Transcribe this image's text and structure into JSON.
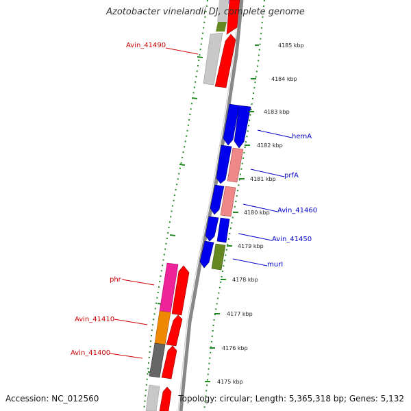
{
  "title": "Azotobacter vinelandii DJ, complete genome",
  "footer": {
    "accession": "Accession: NC_012560",
    "summary": "Topology: circular; Length: 5,365,318 bp; Genes: 5,132"
  },
  "ticks": [
    "4185 kbp",
    "4184 kbp",
    "4183 kbp",
    "4182 kbp",
    "4181 kbp",
    "4180 kbp",
    "4179 kbp",
    "4178 kbp",
    "4177 kbp",
    "4176 kbp",
    "4175 kbp"
  ],
  "labels": {
    "left": [
      "Avin_41490",
      "phr",
      "Avin_41410",
      "Avin_41400"
    ],
    "right": [
      "hemA",
      "prfA",
      "Avin_41460",
      "Avin_41450",
      "murI"
    ]
  },
  "colors": {
    "reverse_label": "#cc0000",
    "forward_label": "#0000cc",
    "cds": "#ff0000",
    "gene_blue": "#0000ee",
    "pink": "#ee8888",
    "olive": "#668822",
    "grey": "#c8c8c8",
    "dark_grey": "#666666",
    "magenta": "#ee2299",
    "orange": "#ee8800",
    "tick_green": "#228822"
  }
}
